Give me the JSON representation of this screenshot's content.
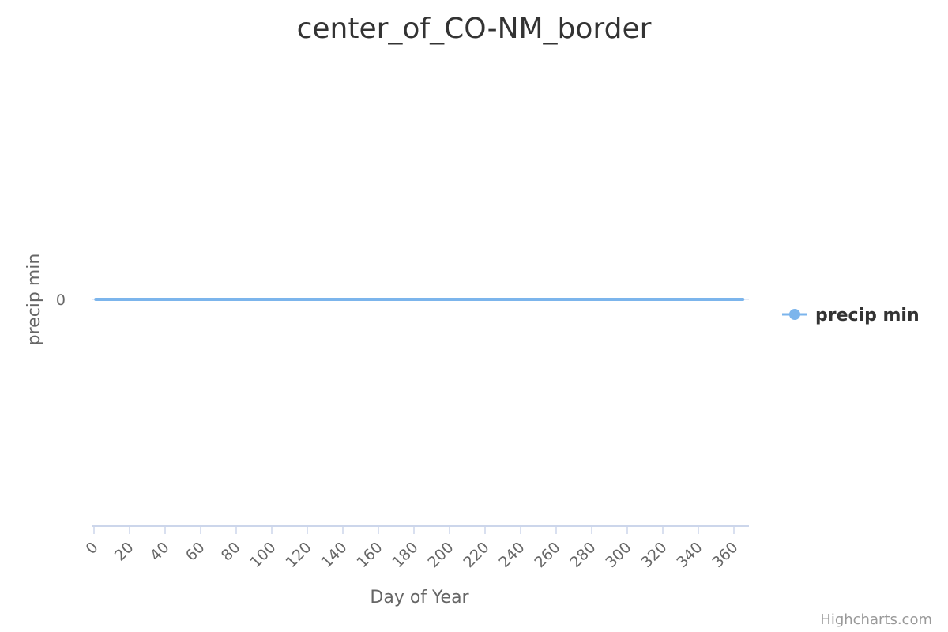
{
  "credits": "Highcharts.com",
  "colors": {
    "series": "#7cb5ec",
    "axis": "#ccd6eb",
    "text": "#333333",
    "muted": "#666666"
  },
  "chart_data": {
    "type": "line",
    "title": "center_of_CO-NM_border",
    "xlabel": "Day of Year",
    "ylabel": "precip min",
    "xlim": [
      0,
      365
    ],
    "xticks": [
      0,
      20,
      40,
      60,
      80,
      100,
      120,
      140,
      160,
      180,
      200,
      220,
      240,
      260,
      280,
      300,
      320,
      340,
      360
    ],
    "yticks": [
      0
    ],
    "legend": "right",
    "grid": false,
    "series": [
      {
        "name": "precip min",
        "x": [
          1,
          365
        ],
        "y": [
          0,
          0
        ]
      }
    ]
  }
}
